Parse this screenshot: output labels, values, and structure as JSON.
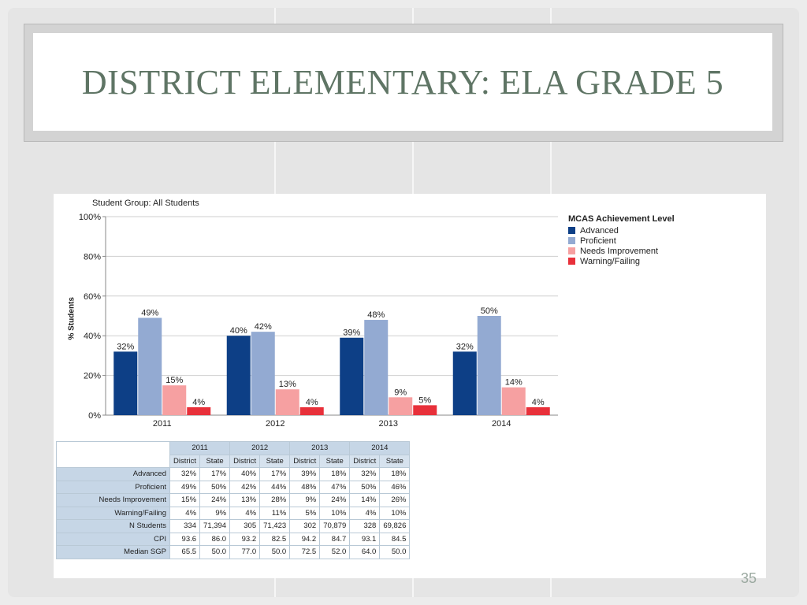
{
  "slide": {
    "title": "DISTRICT ELEMENTARY:  ELA GRADE 5",
    "page_number": "35"
  },
  "chart_data": {
    "type": "bar",
    "subtitle": "Student Group: All Students",
    "ylabel": "% Students",
    "ylim": [
      0,
      100
    ],
    "yticks": [
      "0%",
      "20%",
      "40%",
      "60%",
      "80%",
      "100%"
    ],
    "categories": [
      "2011",
      "2012",
      "2013",
      "2014"
    ],
    "legend": {
      "title": "MCAS Achievement Level",
      "placement": "top-right"
    },
    "grid": true,
    "series": [
      {
        "name": "Advanced",
        "color": "#0d3f86",
        "values": [
          32,
          40,
          39,
          32
        ],
        "labels": [
          "32%",
          "40%",
          "39%",
          "32%"
        ]
      },
      {
        "name": "Proficient",
        "color": "#93aad2",
        "values": [
          49,
          42,
          48,
          50
        ],
        "labels": [
          "49%",
          "42%",
          "48%",
          "50%"
        ]
      },
      {
        "name": "Needs Improvement",
        "color": "#f6a0a1",
        "values": [
          15,
          13,
          9,
          14
        ],
        "labels": [
          "15%",
          "13%",
          "9%",
          "14%"
        ]
      },
      {
        "name": "Warning/Failing",
        "color": "#e8303a",
        "values": [
          4,
          4,
          5,
          4
        ],
        "labels": [
          "4%",
          "4%",
          "5%",
          "4%"
        ]
      }
    ]
  },
  "table": {
    "years": [
      "2011",
      "2012",
      "2013",
      "2014"
    ],
    "subheaders": [
      "District",
      "State"
    ],
    "rows": [
      {
        "label": "Advanced",
        "cells": [
          "32%",
          "17%",
          "40%",
          "17%",
          "39%",
          "18%",
          "32%",
          "18%"
        ]
      },
      {
        "label": "Proficient",
        "cells": [
          "49%",
          "50%",
          "42%",
          "44%",
          "48%",
          "47%",
          "50%",
          "46%"
        ]
      },
      {
        "label": "Needs Improvement",
        "cells": [
          "15%",
          "24%",
          "13%",
          "28%",
          "9%",
          "24%",
          "14%",
          "26%"
        ]
      },
      {
        "label": "Warning/Failing",
        "cells": [
          "4%",
          "9%",
          "4%",
          "11%",
          "5%",
          "10%",
          "4%",
          "10%"
        ]
      },
      {
        "label": "N Students",
        "cells": [
          "334",
          "71,394",
          "305",
          "71,423",
          "302",
          "70,879",
          "328",
          "69,826"
        ]
      },
      {
        "label": "CPI",
        "cells": [
          "93.6",
          "86.0",
          "93.2",
          "82.5",
          "94.2",
          "84.7",
          "93.1",
          "84.5"
        ]
      },
      {
        "label": "Median SGP",
        "cells": [
          "65.5",
          "50.0",
          "77.0",
          "50.0",
          "72.5",
          "52.0",
          "64.0",
          "50.0"
        ]
      }
    ]
  }
}
